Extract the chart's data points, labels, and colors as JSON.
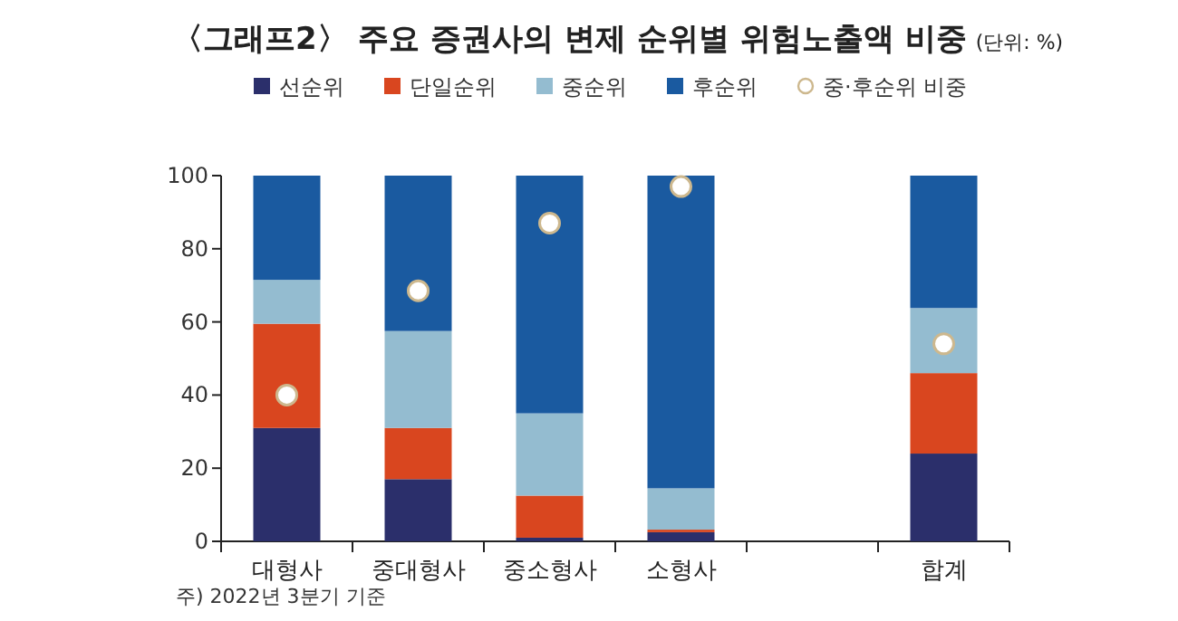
{
  "chart_data": {
    "type": "bar",
    "title": "〈그래프2〉 주요 증권사의 변제 순위별 위험노출액 비중",
    "subtitle": "(단위: %)",
    "categories": [
      "대형사",
      "중대형사",
      "중소형사",
      "소형사",
      null,
      "합계"
    ],
    "stacked": true,
    "ylim": [
      0,
      100
    ],
    "yticks": [
      0,
      20,
      40,
      60,
      80,
      100
    ],
    "legend": "top",
    "series": [
      {
        "name": "선순위",
        "color": "#2b2f6b",
        "values": [
          31,
          17,
          1,
          2.5,
          null,
          24
        ]
      },
      {
        "name": "단일순위",
        "color": "#d9461f",
        "values": [
          28.5,
          14,
          11.5,
          0.7,
          null,
          22
        ]
      },
      {
        "name": "중순위",
        "color": "#94bcd0",
        "values": [
          12,
          26.5,
          22.5,
          11.3,
          null,
          17.8
        ]
      },
      {
        "name": "후순위",
        "color": "#1a5aa0",
        "values": [
          28.5,
          42.5,
          65,
          85.5,
          null,
          36.2
        ]
      },
      {
        "name": "중·후순위 비중",
        "type": "scatter",
        "color": "#ffffff",
        "x": [
          "대형사",
          "중대형사",
          "중소형사",
          "소형사",
          "합계"
        ],
        "values": [
          40,
          68.5,
          87,
          97,
          54
        ]
      }
    ],
    "annotations": [
      "주) 2022년 3분기 기준"
    ]
  }
}
